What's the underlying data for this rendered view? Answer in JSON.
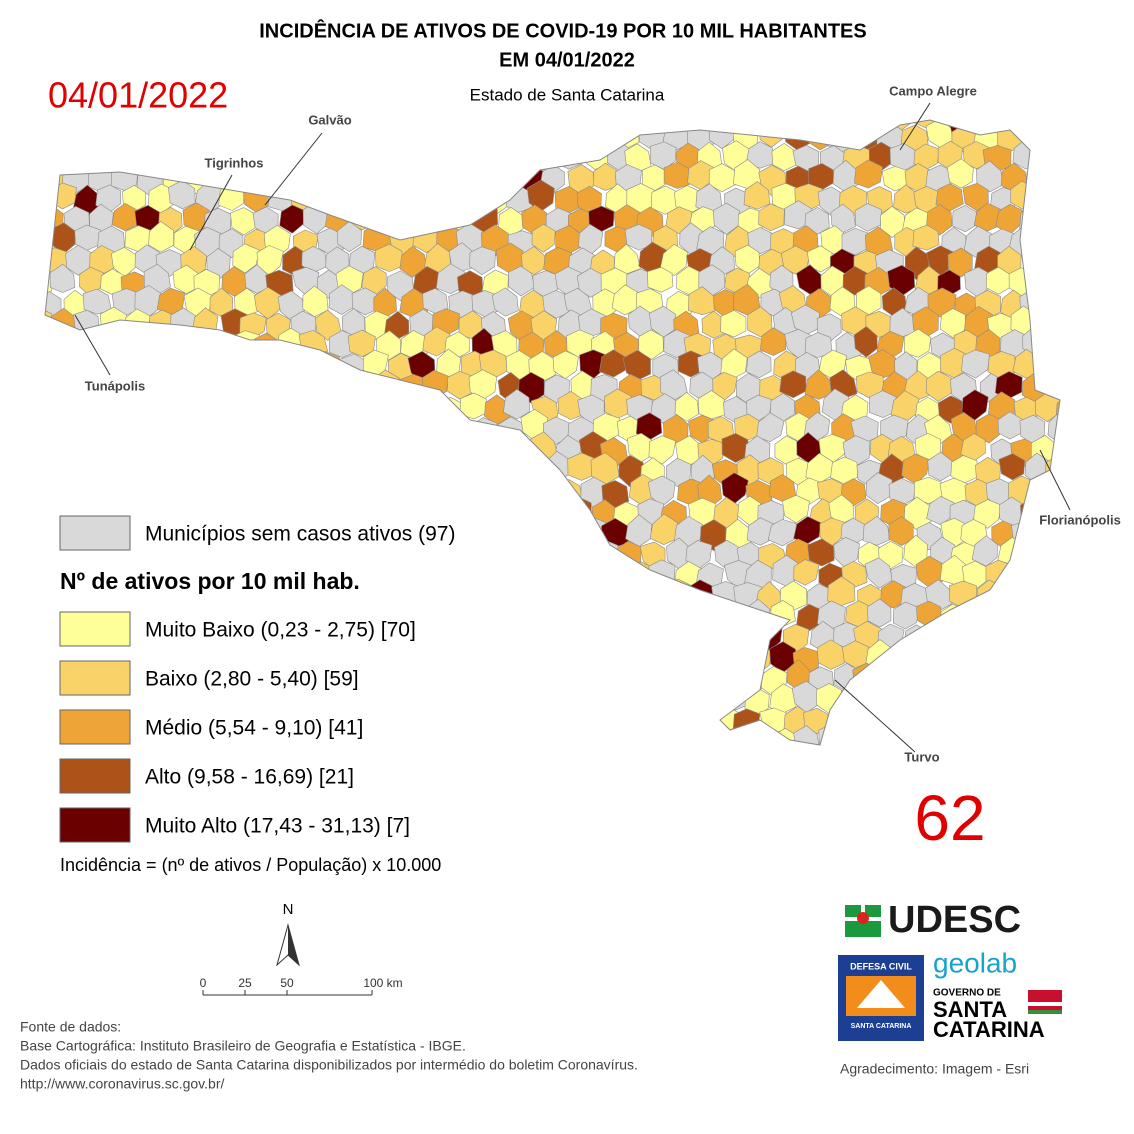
{
  "header": {
    "title_line1": "INCIDÊNCIA DE ATIVOS DE COVID-19 POR 10 MIL HABITANTES",
    "title_line2": "EM 04/01/2022",
    "date": "04/01/2022",
    "subtitle": "Estado de Santa Catarina"
  },
  "map": {
    "labels": [
      "Galvão",
      "Tigrinhos",
      "Campo Alegre",
      "Tunápolis",
      "Florianópolis",
      "Turvo"
    ]
  },
  "legend": {
    "no_cases": {
      "label": "Municípios sem casos ativos (97)",
      "color": "#d9d9d9"
    },
    "heading": "Nº de ativos por 10 mil hab.",
    "classes": [
      {
        "label": "Muito Baixo (0,23 - 2,75) [70]",
        "color": "#ffff99"
      },
      {
        "label": "Baixo (2,80 - 5,40) [59]",
        "color": "#f9d268"
      },
      {
        "label": "Médio (5,54 - 9,10) [41]",
        "color": "#eea536"
      },
      {
        "label": "Alto (9,58 - 16,69) [21]",
        "color": "#ad5319"
      },
      {
        "label": "Muito Alto (17,43 - 31,13) [7]",
        "color": "#6a0000"
      }
    ],
    "formula": "Incidência = (nº de ativos / População) x 10.000"
  },
  "count": 62,
  "scale": {
    "north": "N",
    "labels": [
      "0",
      "25",
      "50",
      "100 km"
    ]
  },
  "sources": [
    "Fonte de dados:",
    "Base Cartográfica: Instituto Brasileiro de Geografia e Estatística - IBGE.",
    "Dados oficiais do estado de Santa Catarina disponibilizados por intermédio do boletim Coronavírus.",
    "http://www.coronavirus.sc.gov.br/"
  ],
  "logos": {
    "udesc": "UDESC",
    "geolab": "geolab",
    "defesa_civil": "DEFESA CIVIL",
    "defesa_sc": "SANTA CATARINA",
    "governo": "GOVERNO DE",
    "governo_sc1": "SANTA",
    "governo_sc2": "CATARINA"
  },
  "credit": "Agradecimento: Imagem - Esri"
}
